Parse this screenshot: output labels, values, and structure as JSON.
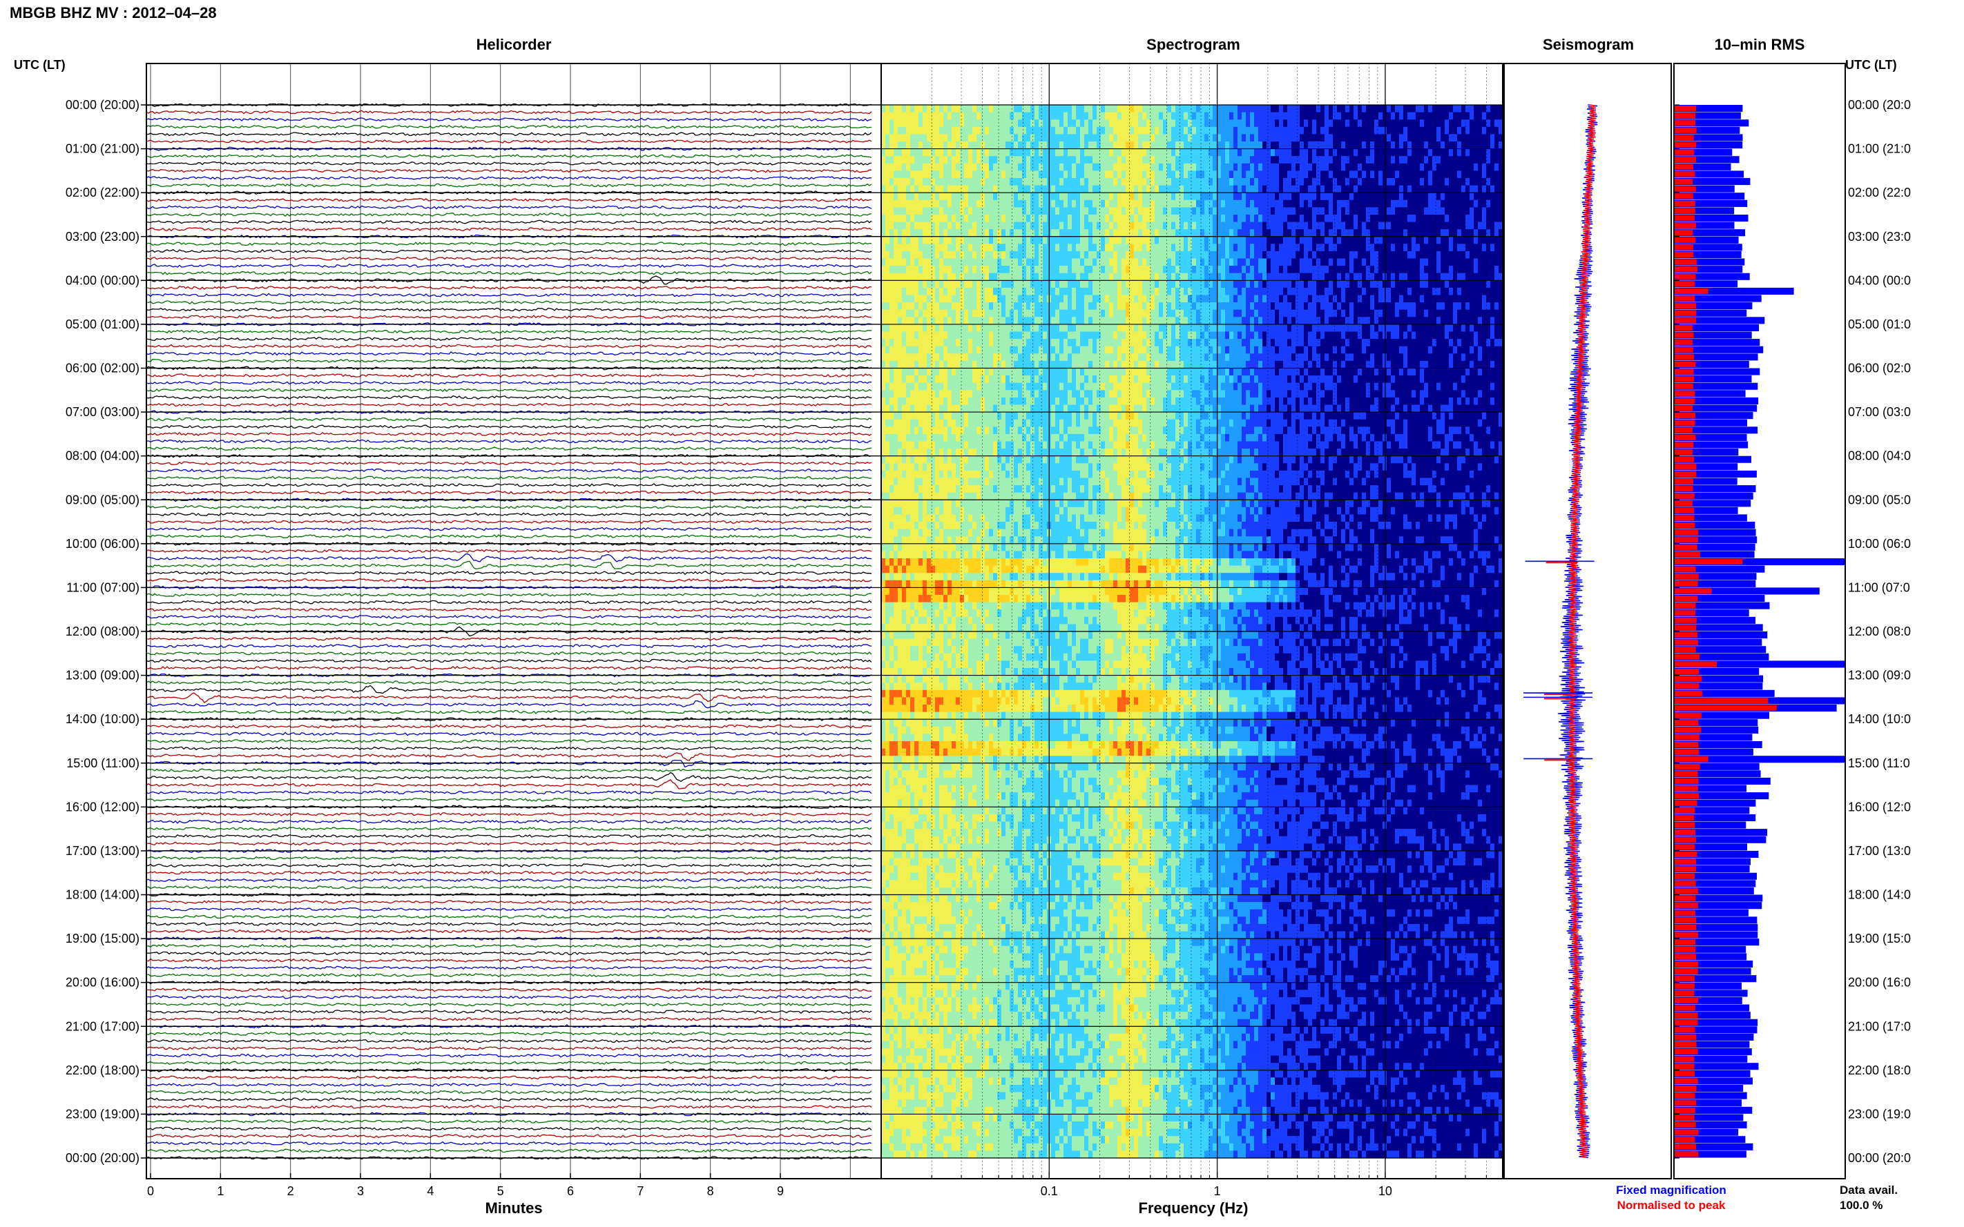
{
  "header": {
    "title": "MBGB BHZ MV : 2012–04–28"
  },
  "panels": {
    "helicorder": "Helicorder",
    "spectrogram": "Spectrogram",
    "seismogram": "Seismogram",
    "rms": "10–min RMS"
  },
  "axis": {
    "left_label": "UTC (LT)",
    "right_label": "UTC (LT)",
    "minutes_label": "Minutes",
    "frequency_label": "Frequency (Hz)"
  },
  "legend": {
    "fixed": "Fixed magnification",
    "normalised": "Normalised to peak",
    "data_avail_label": "Data avail.",
    "data_avail_value": "100.0 %"
  },
  "colors": {
    "trace_cycle": [
      "#000000",
      "#b00000",
      "#0000c8",
      "#007000"
    ],
    "fixed": "#0000ff",
    "normalised": "#ff0000"
  },
  "chart_data": [
    {
      "type": "line",
      "title": "Helicorder",
      "xlabel": "Minutes",
      "x_ticks": [
        "0",
        "1",
        "2",
        "3",
        "4",
        "5",
        "6",
        "7",
        "8",
        "9"
      ],
      "xlim": [
        0,
        10
      ],
      "y_ticks_left": [
        "00:00 (20:00)",
        "01:00 (21:00)",
        "02:00 (22:00)",
        "03:00 (23:00)",
        "04:00 (00:00)",
        "05:00 (01:00)",
        "06:00 (02:00)",
        "07:00 (03:00)",
        "08:00 (04:00)",
        "09:00 (05:00)",
        "10:00 (06:00)",
        "11:00 (07:00)",
        "12:00 (08:00)",
        "13:00 (09:00)",
        "14:00 (10:00)",
        "15:00 (11:00)",
        "16:00 (12:00)",
        "17:00 (13:00)",
        "18:00 (14:00)",
        "19:00 (15:00)",
        "20:00 (16:00)",
        "21:00 (17:00)",
        "22:00 (18:00)",
        "23:00 (19:00)",
        "00:00 (20:00)"
      ],
      "y_ticks_right": [
        "00:00 (20:0",
        "01:00 (21:0",
        "02:00 (22:0",
        "03:00 (23:0",
        "04:00 (00:0",
        "05:00 (01:0",
        "06:00 (02:0",
        "07:00 (03:0",
        "08:00 (04:0",
        "09:00 (05:0",
        "10:00 (06:0",
        "11:00 (07:0",
        "12:00 (08:0",
        "13:00 (09:0",
        "14:00 (10:0",
        "15:00 (11:0",
        "16:00 (12:0",
        "17:00 (13:0",
        "18:00 (14:0",
        "19:00 (15:0",
        "20:00 (16:0",
        "21:00 (17:0",
        "22:00 (18:0",
        "23:00 (19:0",
        "00:00 (20:0"
      ],
      "traces_per_hour": 6,
      "events": [
        {
          "hour": 4.0,
          "minute": 7.3
        },
        {
          "hour": 10.4,
          "minute": 4.6
        },
        {
          "hour": 10.4,
          "minute": 6.6
        },
        {
          "hour": 12.0,
          "minute": 4.5
        },
        {
          "hour": 13.3,
          "minute": 3.2
        },
        {
          "hour": 13.5,
          "minute": 0.7
        },
        {
          "hour": 13.6,
          "minute": 7.9
        },
        {
          "hour": 14.9,
          "minute": 7.6
        },
        {
          "hour": 15.4,
          "minute": 7.5
        }
      ]
    },
    {
      "type": "heatmap",
      "title": "Spectrogram",
      "xlabel": "Frequency (Hz)",
      "x_scale": "log",
      "xlim": [
        0.01,
        50
      ],
      "x_ticks": [
        "0.1",
        "1",
        "10"
      ],
      "colormap": [
        "#00008b",
        "#1a3cff",
        "#1e9cff",
        "#3cd2ff",
        "#a0f0b4",
        "#f0f050",
        "#ffd21e",
        "#ff6414",
        "#e60000"
      ],
      "spectrum_profile": [
        {
          "f": 0.02,
          "level": 0.58
        },
        {
          "f": 0.05,
          "level": 0.5
        },
        {
          "f": 0.1,
          "level": 0.4
        },
        {
          "f": 0.2,
          "level": 0.48
        },
        {
          "f": 0.3,
          "level": 0.62
        },
        {
          "f": 0.5,
          "level": 0.46
        },
        {
          "f": 1.0,
          "level": 0.32
        },
        {
          "f": 2.0,
          "level": 0.16
        },
        {
          "f": 5.0,
          "level": 0.1
        },
        {
          "f": 10.0,
          "level": 0.08
        },
        {
          "f": 50.0,
          "level": 0.07
        }
      ],
      "bright_rows_hours": [
        10.4,
        11.0,
        13.5,
        14.6
      ]
    },
    {
      "type": "line",
      "title": "Seismogram",
      "series": [
        {
          "name": "Fixed magnification",
          "relative_amplitude": [
            1.0,
            1.0,
            1.0,
            1.0,
            1.6,
            1.3,
            1.8,
            1.7,
            1.3,
            1.2,
            1.4,
            1.8,
            1.9,
            2.1,
            2.3,
            2.0,
            1.6,
            1.5,
            1.4,
            1.3,
            1.3,
            1.3,
            1.2,
            1.2,
            1.1
          ]
        },
        {
          "name": "Normalised to peak"
        }
      ],
      "spikes_hours": [
        10.4,
        13.4,
        13.5,
        14.9
      ]
    },
    {
      "type": "bar",
      "title": "10–min RMS",
      "series": [
        {
          "name": "Fixed magnification",
          "hourly_relative": [
            0.38,
            0.38,
            0.4,
            0.4,
            0.42,
            0.5,
            0.48,
            0.45,
            0.43,
            0.43,
            0.46,
            0.52,
            0.5,
            0.55,
            0.52,
            0.5,
            0.48,
            0.47,
            0.46,
            0.45,
            0.45,
            0.45,
            0.44,
            0.43,
            0.42
          ]
        },
        {
          "name": "Normalised to peak",
          "hourly_relative": [
            0.12,
            0.12,
            0.12,
            0.12,
            0.13,
            0.12,
            0.12,
            0.12,
            0.12,
            0.12,
            0.14,
            0.14,
            0.13,
            0.15,
            0.15,
            0.14,
            0.13,
            0.13,
            0.13,
            0.13,
            0.13,
            0.13,
            0.13,
            0.13,
            0.13
          ]
        }
      ],
      "peaks": [
        {
          "hour": 4.2,
          "fixed": 0.7,
          "normalised": 0.2
        },
        {
          "hour": 10.4,
          "fixed": 1.0,
          "normalised": 0.4
        },
        {
          "hour": 11.0,
          "fixed": 0.85,
          "normalised": 0.22
        },
        {
          "hour": 12.6,
          "fixed": 1.0,
          "normalised": 0.25
        },
        {
          "hour": 13.5,
          "fixed": 1.0,
          "normalised": 0.55
        },
        {
          "hour": 13.6,
          "fixed": 0.95,
          "normalised": 0.6
        },
        {
          "hour": 14.9,
          "fixed": 1.0,
          "normalised": 0.2
        }
      ],
      "data_availability": "100.0 %"
    }
  ]
}
